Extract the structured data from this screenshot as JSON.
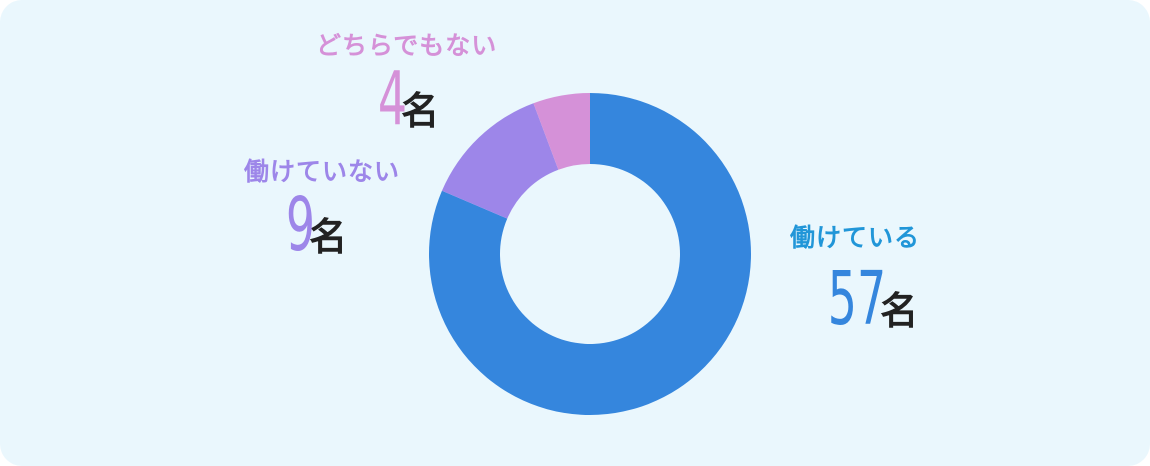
{
  "chart_data": {
    "type": "pie",
    "categories": [
      "働けている",
      "働けていない",
      "どちらでもない"
    ],
    "values": [
      57,
      9,
      4
    ],
    "unit": "名",
    "colors": [
      "#3586dd",
      "#9d86e9",
      "#d591d8"
    ],
    "label_colors": [
      "#2196d8",
      "#9d86e9",
      "#d591d8"
    ],
    "legend": "none"
  }
}
